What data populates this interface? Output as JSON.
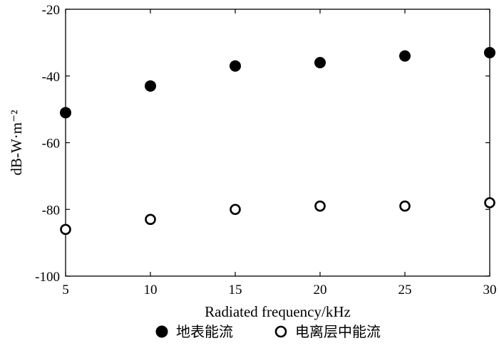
{
  "chart_data": {
    "type": "scatter",
    "xlabel": "Radiated frequency/kHz",
    "ylabel": "dB-W·m⁻²",
    "xlim": [
      5,
      30
    ],
    "ylim": [
      -100,
      -20
    ],
    "x_ticks": [
      5,
      10,
      15,
      20,
      25,
      30
    ],
    "y_ticks": [
      -20,
      -40,
      -60,
      -80,
      -100
    ],
    "grid": false,
    "legend_position": "bottom",
    "series": [
      {
        "name": "地表能流",
        "marker": "filled-circle",
        "color": "#000000",
        "x": [
          5,
          10,
          15,
          20,
          25,
          30
        ],
        "y": [
          -51,
          -43,
          -37,
          -36,
          -34,
          -33
        ]
      },
      {
        "name": "电离层中能流",
        "marker": "open-circle",
        "color": "#000000",
        "x": [
          5,
          10,
          15,
          20,
          25,
          30
        ],
        "y": [
          -86,
          -83,
          -80,
          -79,
          -79,
          -78
        ]
      }
    ]
  }
}
